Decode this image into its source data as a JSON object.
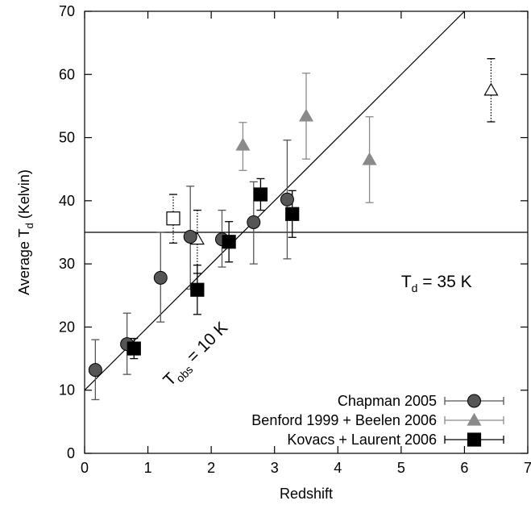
{
  "chart_data": {
    "type": "scatter",
    "xlabel": "Redshift",
    "ylabel": {
      "main": "Average T",
      "sub": "d",
      "tail": " (Kelvin)"
    },
    "xlim": [
      0,
      7
    ],
    "ylim": [
      0,
      70
    ],
    "xticks": [
      0,
      1,
      2,
      3,
      4,
      5,
      6,
      7
    ],
    "yticks": [
      0,
      10,
      20,
      30,
      40,
      50,
      60,
      70
    ],
    "grid": false,
    "legend_position": "bottom-right",
    "colors": {
      "chapman": "#555555",
      "benford": "#8a8a8a",
      "kovacs": "#000000"
    },
    "series": [
      {
        "name": "Chapman 2005",
        "key": "chapman",
        "marker": "circle",
        "points": [
          {
            "x": 0.17,
            "y": 13.2,
            "lo": 8.5,
            "hi": 18.0
          },
          {
            "x": 0.67,
            "y": 17.3,
            "lo": 12.5,
            "hi": 22.2
          },
          {
            "x": 1.2,
            "y": 27.8,
            "lo": 20.8,
            "hi": 35.0
          },
          {
            "x": 1.67,
            "y": 34.3,
            "lo": 26.0,
            "hi": 42.3
          },
          {
            "x": 2.17,
            "y": 33.9,
            "lo": 29.5,
            "hi": 38.5
          },
          {
            "x": 2.67,
            "y": 36.6,
            "lo": 30.0,
            "hi": 43.0
          },
          {
            "x": 3.2,
            "y": 40.2,
            "lo": 30.8,
            "hi": 49.6
          }
        ]
      },
      {
        "name": "Benford 1999 + Beelen 2006",
        "key": "benford",
        "marker": "triangle",
        "points": [
          {
            "x": 2.5,
            "y": 48.8,
            "lo": 44.8,
            "hi": 52.4
          },
          {
            "x": 3.5,
            "y": 53.4,
            "lo": 46.6,
            "hi": 60.2
          },
          {
            "x": 4.5,
            "y": 46.5,
            "lo": 39.7,
            "hi": 53.3
          }
        ]
      },
      {
        "name": "Kovacs + Laurent 2006",
        "key": "kovacs",
        "marker": "square",
        "points": [
          {
            "x": 0.78,
            "y": 16.6,
            "lo": 15.0,
            "hi": 18.2
          },
          {
            "x": 1.78,
            "y": 25.9,
            "lo": 22.0,
            "hi": 29.8
          },
          {
            "x": 2.28,
            "y": 33.5,
            "lo": 30.3,
            "hi": 36.7
          },
          {
            "x": 2.78,
            "y": 41.0,
            "lo": 38.5,
            "hi": 43.5
          },
          {
            "x": 3.28,
            "y": 37.9,
            "lo": 34.2,
            "hi": 41.6
          }
        ]
      }
    ],
    "open_points": [
      {
        "x": 1.4,
        "y": 37.2,
        "lo": 33.3,
        "hi": 41.0,
        "marker": "square"
      },
      {
        "x": 1.78,
        "y": 33.9,
        "lo": 28.5,
        "hi": 38.5,
        "marker": "triangle"
      },
      {
        "x": 6.42,
        "y": 57.5,
        "lo": 52.5,
        "hi": 62.5,
        "marker": "triangle"
      }
    ],
    "reference_lines": {
      "horizontal_td": 35,
      "tobs": 10
    },
    "annotations": {
      "td": {
        "main": "T",
        "sub": "d",
        "tail": " = 35 K"
      },
      "tobs": {
        "main": "T",
        "sub": "obs",
        "tail": " = 10 K"
      }
    }
  }
}
